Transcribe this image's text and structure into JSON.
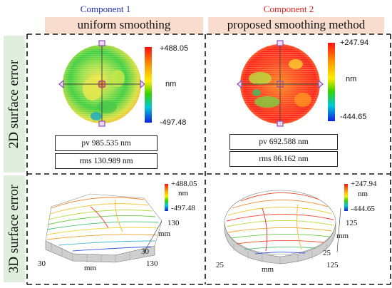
{
  "columns": [
    {
      "component": "Component 1",
      "component_color": "#1f2fbf",
      "title": "uniform smoothing",
      "colorbar_max": "+488.05",
      "colorbar_min": "-497.48",
      "unit": "nm",
      "pv": "pv 985.535 nm",
      "rms": "rms 130.989 nm",
      "axis_x_left": "30",
      "axis_x_right": "130",
      "axis_x_label": "mm",
      "axis_y_top": "130",
      "axis_y_bottom": "30",
      "axis_y_label": "mm"
    },
    {
      "component": "Component 2",
      "component_color": "#e0201c",
      "title": "proposed smoothing method",
      "colorbar_max": "+247.94",
      "colorbar_min": "-444.65",
      "unit": "nm",
      "pv": "pv 692.588 nm",
      "rms": "rms 86.162 nm",
      "axis_x_left": "25",
      "axis_x_right": "125",
      "axis_x_label": "mm",
      "axis_y_top": "125",
      "axis_y_bottom": "25",
      "axis_y_label": "mm"
    }
  ],
  "rows": {
    "row1": "2D surface error",
    "row2": "3D surface error"
  }
}
